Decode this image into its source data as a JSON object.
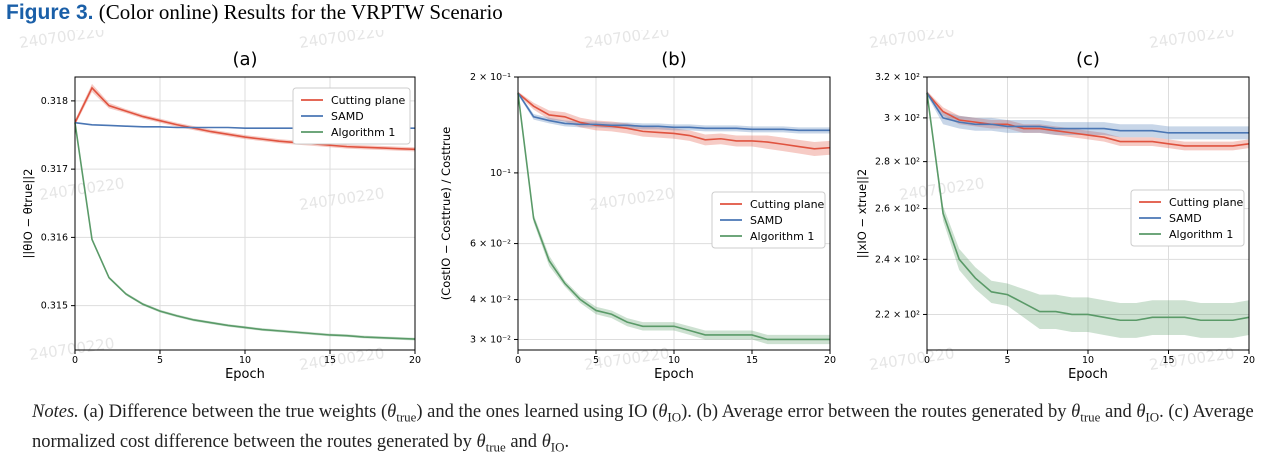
{
  "figure": {
    "label": "Figure 3.",
    "caption": "(Color online) Results for the VRPTW Scenario"
  },
  "notes": {
    "lead": "Notes.",
    "a_marker": "(a)",
    "a_text_1": "Difference between the true weights (",
    "a_text_2": ") and the ones learned using IO (",
    "a_text_3": ").",
    "b_marker": "(b)",
    "b_text_1": "Average error between the routes generated by",
    "b_text_2": "and",
    "b_text_3": ".",
    "c_marker": "(c)",
    "c_text_1": "Average normalized cost difference between the routes generated by",
    "c_text_2": "and",
    "c_text_3": ".",
    "theta": "θ",
    "sub_true": "true",
    "sub_io": "IO"
  },
  "colors": {
    "cutting_plane": "#e0533f",
    "samd": "#4a76b4",
    "algorithm1": "#5a9a68",
    "watermark": "#e6e6e6"
  },
  "watermark": "240700220",
  "chart_data": [
    {
      "panel": "(a)",
      "type": "line",
      "xlabel": "Epoch",
      "ylabel": "||θIO − θtrue||2",
      "xlim": [
        0,
        20
      ],
      "ylim": [
        0.31435,
        0.31835
      ],
      "yscale": "linear",
      "xticks": [
        0,
        5,
        10,
        15,
        20
      ],
      "yticks": [
        0.315,
        0.316,
        0.317,
        0.318
      ],
      "ytick_labels": [
        "0.315",
        "0.316",
        "0.317",
        "0.318"
      ],
      "grid": true,
      "legend": "top-right",
      "x": [
        0,
        1,
        2,
        3,
        4,
        5,
        6,
        7,
        8,
        9,
        10,
        11,
        12,
        13,
        14,
        15,
        16,
        17,
        18,
        19,
        20
      ],
      "series": [
        {
          "name": "Cutting plane",
          "color_key": "cutting_plane",
          "values": [
            0.31768,
            0.31819,
            0.31793,
            0.31785,
            0.31777,
            0.31771,
            0.31765,
            0.3176,
            0.31755,
            0.31751,
            0.31747,
            0.31744,
            0.31741,
            0.31739,
            0.31737,
            0.31735,
            0.31733,
            0.31732,
            0.31731,
            0.3173,
            0.31729
          ],
          "band": [
            4e-05,
            6e-05,
            4e-05,
            3e-05,
            3e-05,
            3e-05,
            3e-05,
            3e-05,
            3e-05,
            3e-05,
            3e-05,
            3e-05,
            3e-05,
            3e-05,
            3e-05,
            3e-05,
            3e-05,
            3e-05,
            3e-05,
            3e-05,
            3e-05
          ]
        },
        {
          "name": "SAMD",
          "color_key": "samd",
          "values": [
            0.31768,
            0.31765,
            0.31764,
            0.31763,
            0.31762,
            0.31762,
            0.31761,
            0.31761,
            0.31761,
            0.31761,
            0.3176,
            0.3176,
            0.3176,
            0.3176,
            0.3176,
            0.3176,
            0.3176,
            0.3176,
            0.3176,
            0.3176,
            0.3176
          ],
          "band": [
            5e-06,
            5e-06,
            5e-06,
            5e-06,
            5e-06,
            5e-06,
            5e-06,
            5e-06,
            5e-06,
            5e-06,
            5e-06,
            5e-06,
            5e-06,
            5e-06,
            5e-06,
            5e-06,
            5e-06,
            5e-06,
            5e-06,
            5e-06,
            5e-06
          ]
        },
        {
          "name": "Algorithm 1",
          "color_key": "algorithm1",
          "values": [
            0.31768,
            0.31597,
            0.31541,
            0.31517,
            0.31502,
            0.31492,
            0.31485,
            0.31479,
            0.31475,
            0.31471,
            0.31468,
            0.31465,
            0.31463,
            0.31461,
            0.31459,
            0.31457,
            0.31456,
            0.31454,
            0.31453,
            0.31452,
            0.31451
          ],
          "band": [
            5e-06,
            2e-05,
            2e-05,
            2e-05,
            2e-05,
            2e-05,
            2e-05,
            2e-05,
            2e-05,
            2e-05,
            2e-05,
            2e-05,
            2e-05,
            2e-05,
            2e-05,
            2e-05,
            2e-05,
            2e-05,
            2e-05,
            2e-05,
            2e-05
          ]
        }
      ]
    },
    {
      "panel": "(b)",
      "type": "line",
      "xlabel": "Epoch",
      "ylabel": "(CostIO − Costtrue) / Costtrue",
      "xlim": [
        0,
        20
      ],
      "ylim": [
        0.0278,
        0.2
      ],
      "yscale": "log",
      "xticks": [
        0,
        5,
        10,
        15,
        20
      ],
      "yticks": [
        0.03,
        0.04,
        0.06,
        0.1,
        0.2
      ],
      "ytick_labels": [
        "3 × 10⁻²",
        "4 × 10⁻²",
        "6 × 10⁻²",
        "10⁻¹",
        "2 × 10⁻¹"
      ],
      "grid": true,
      "legend": "center-right",
      "x": [
        0,
        1,
        2,
        3,
        4,
        5,
        6,
        7,
        8,
        9,
        10,
        11,
        12,
        13,
        14,
        15,
        16,
        17,
        18,
        19,
        20
      ],
      "series": [
        {
          "name": "Cutting plane",
          "color_key": "cutting_plane",
          "values": [
            0.178,
            0.162,
            0.152,
            0.15,
            0.144,
            0.141,
            0.14,
            0.138,
            0.135,
            0.134,
            0.133,
            0.131,
            0.127,
            0.128,
            0.126,
            0.126,
            0.125,
            0.123,
            0.121,
            0.119,
            0.12
          ],
          "band": [
            0.002,
            0.004,
            0.005,
            0.005,
            0.005,
            0.005,
            0.005,
            0.005,
            0.005,
            0.005,
            0.005,
            0.005,
            0.005,
            0.005,
            0.005,
            0.005,
            0.006,
            0.006,
            0.006,
            0.006,
            0.006
          ]
        },
        {
          "name": "SAMD",
          "color_key": "samd",
          "values": [
            0.178,
            0.15,
            0.146,
            0.143,
            0.142,
            0.142,
            0.141,
            0.141,
            0.14,
            0.14,
            0.139,
            0.139,
            0.138,
            0.138,
            0.138,
            0.137,
            0.137,
            0.137,
            0.136,
            0.136,
            0.136
          ],
          "band": [
            0.002,
            0.003,
            0.003,
            0.003,
            0.003,
            0.003,
            0.003,
            0.003,
            0.003,
            0.003,
            0.003,
            0.003,
            0.003,
            0.003,
            0.003,
            0.003,
            0.003,
            0.003,
            0.003,
            0.003,
            0.003
          ]
        },
        {
          "name": "Algorithm 1",
          "color_key": "algorithm1",
          "values": [
            0.178,
            0.072,
            0.053,
            0.045,
            0.04,
            0.037,
            0.036,
            0.034,
            0.033,
            0.033,
            0.033,
            0.032,
            0.031,
            0.031,
            0.031,
            0.031,
            0.03,
            0.03,
            0.03,
            0.03,
            0.03
          ],
          "band": [
            0.002,
            0.002,
            0.002,
            0.001,
            0.001,
            0.001,
            0.001,
            0.001,
            0.001,
            0.001,
            0.001,
            0.001,
            0.001,
            0.001,
            0.001,
            0.001,
            0.001,
            0.001,
            0.001,
            0.001,
            0.001
          ]
        }
      ]
    },
    {
      "panel": "(c)",
      "type": "line",
      "xlabel": "Epoch",
      "ylabel": "||xIO − xtrue||2",
      "xlim": [
        0,
        20
      ],
      "ylim": [
        208,
        320
      ],
      "yscale": "log",
      "xticks": [
        0,
        5,
        10,
        15,
        20
      ],
      "yticks": [
        220,
        240,
        260,
        280,
        300,
        320
      ],
      "ytick_labels": [
        "2.2 × 10²",
        "2.4 × 10²",
        "2.6 × 10²",
        "2.8 × 10²",
        "3 × 10²",
        "3.2 × 10²"
      ],
      "grid": true,
      "legend": "center-right",
      "x": [
        0,
        1,
        2,
        3,
        4,
        5,
        6,
        7,
        8,
        9,
        10,
        11,
        12,
        13,
        14,
        15,
        16,
        17,
        18,
        19,
        20
      ],
      "series": [
        {
          "name": "Cutting plane",
          "color_key": "cutting_plane",
          "values": [
            312,
            303,
            299,
            298,
            297,
            297,
            295,
            295,
            294,
            293,
            292,
            291,
            289,
            289,
            289,
            288,
            287,
            287,
            287,
            287,
            288
          ],
          "band": [
            1,
            2,
            2,
            2,
            2,
            2,
            2,
            2,
            2,
            2,
            2,
            2,
            2,
            2,
            2,
            2,
            2,
            2,
            2,
            2,
            2
          ]
        },
        {
          "name": "SAMD",
          "color_key": "samd",
          "values": [
            312,
            300,
            298,
            297,
            297,
            296,
            296,
            296,
            295,
            295,
            295,
            295,
            294,
            294,
            294,
            293,
            293,
            293,
            293,
            293,
            293
          ],
          "band": [
            1,
            3,
            3,
            3,
            3,
            3,
            3,
            3,
            3,
            3,
            3,
            3,
            3,
            3,
            3,
            3,
            3,
            3,
            3,
            3,
            3
          ]
        },
        {
          "name": "Algorithm 1",
          "color_key": "algorithm1",
          "values": [
            312,
            258,
            240,
            233,
            228,
            227,
            224,
            221,
            221,
            220,
            220,
            219,
            218,
            218,
            219,
            219,
            219,
            218,
            218,
            218,
            219
          ],
          "band": [
            1,
            3,
            4,
            4,
            4,
            4,
            5,
            6,
            6,
            6,
            6,
            6,
            6,
            6,
            6,
            6,
            6,
            6,
            6,
            6,
            6
          ]
        }
      ]
    }
  ]
}
